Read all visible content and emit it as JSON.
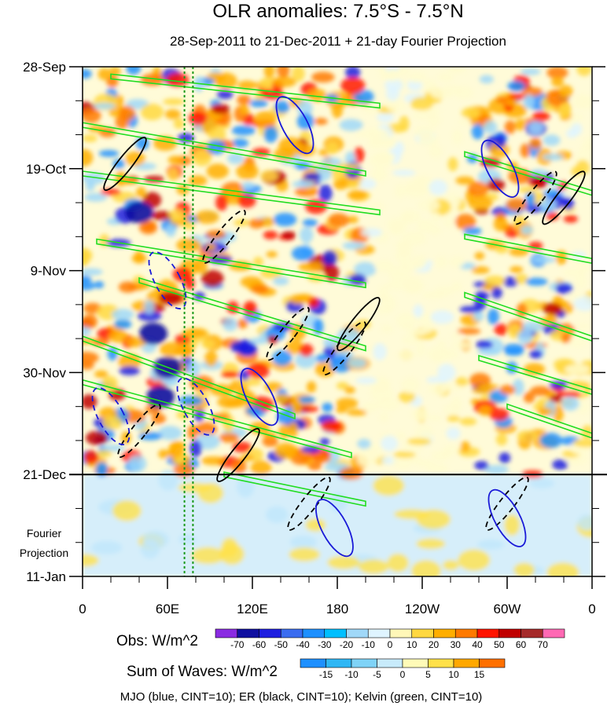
{
  "chart_data": {
    "type": "heatmap",
    "title": "OLR anomalies: 7.5°S - 7.5°N",
    "subtitle": "28-Sep-2011 to 21-Dec-2011 + 21-day Fourier Projection",
    "x_ticks": [
      "0",
      "60E",
      "120E",
      "180",
      "120W",
      "60W",
      "0"
    ],
    "x_tick_lons": [
      0,
      60,
      120,
      180,
      240,
      300,
      360
    ],
    "y_ticks": [
      "28-Sep",
      "19-Oct",
      "9-Nov",
      "30-Nov",
      "21-Dec",
      "11-Jan"
    ],
    "y_tick_days": [
      0,
      21,
      42,
      63,
      84,
      105
    ],
    "projection_label": [
      "Fourier",
      "Projection"
    ],
    "projection_start_day": 84,
    "reference_lines_lon": [
      72,
      78
    ],
    "obs_colorbar": {
      "label": "Obs: W/m^2",
      "levels": [
        "-70",
        "-60",
        "-50",
        "-40",
        "-30",
        "-20",
        "-10",
        "0",
        "10",
        "20",
        "30",
        "40",
        "50",
        "60",
        "70"
      ],
      "colors": [
        "#8a2be2",
        "#1010a0",
        "#1e1ee0",
        "#3a6cf0",
        "#1e90ff",
        "#00bfff",
        "#a0d8f8",
        "#dff4ff",
        "#fff7b8",
        "#ffd840",
        "#ffae00",
        "#ff7a00",
        "#ff1400",
        "#c00000",
        "#a52a2a",
        "#ff69b4"
      ]
    },
    "waves_colorbar": {
      "label": "Sum of Waves: W/m^2",
      "levels": [
        "-15",
        "-10",
        "-5",
        "0",
        "5",
        "10",
        "15"
      ],
      "colors": [
        "#1e90ff",
        "#2fb7f5",
        "#7fd3f7",
        "#c8ebfb",
        "#fffbb8",
        "#ffe14a",
        "#ffa800",
        "#ff7000"
      ]
    },
    "footnote": "MJO (blue, CINT=10); ER (black, CINT=10); Kelvin (green, CINT=10)",
    "wave_colors": {
      "mjo": "#1a1ad8",
      "er": "#000000",
      "kelvin": "#22dd22"
    },
    "mjo_contours": [
      {
        "lon": 60,
        "day": 44,
        "sign": "neg"
      },
      {
        "lon": 80,
        "day": 70,
        "sign": "neg"
      },
      {
        "lon": 125,
        "day": 68,
        "sign": "pos"
      },
      {
        "lon": 178,
        "day": 95,
        "sign": "pos"
      },
      {
        "lon": 300,
        "day": 93,
        "sign": "pos"
      },
      {
        "lon": 295,
        "day": 21,
        "sign": "pos"
      },
      {
        "lon": 150,
        "day": 12,
        "sign": "pos"
      },
      {
        "lon": 20,
        "day": 72,
        "sign": "neg"
      }
    ],
    "er_contours": [
      {
        "lon": 100,
        "day": 35,
        "sign": "neg"
      },
      {
        "lon": 145,
        "day": 55,
        "sign": "neg"
      },
      {
        "lon": 185,
        "day": 58,
        "sign": "neg"
      },
      {
        "lon": 195,
        "day": 53,
        "sign": "pos"
      },
      {
        "lon": 160,
        "day": 90,
        "sign": "neg"
      },
      {
        "lon": 110,
        "day": 80,
        "sign": "pos"
      },
      {
        "lon": 340,
        "day": 27,
        "sign": "pos"
      },
      {
        "lon": 320,
        "day": 27,
        "sign": "neg"
      },
      {
        "lon": 300,
        "day": 90,
        "sign": "neg"
      },
      {
        "lon": 30,
        "day": 20,
        "sign": "pos"
      },
      {
        "lon": 40,
        "day": 75,
        "sign": "neg"
      }
    ],
    "kelvin_bands": [
      {
        "lon0": 20,
        "day0": 2,
        "lon1": 210,
        "day1": 8
      },
      {
        "lon0": 0,
        "day0": 12,
        "lon1": 200,
        "day1": 22
      },
      {
        "lon0": 0,
        "day0": 22,
        "lon1": 210,
        "day1": 30
      },
      {
        "lon0": 10,
        "day0": 36,
        "lon1": 200,
        "day1": 45
      },
      {
        "lon0": 40,
        "day0": 44,
        "lon1": 200,
        "day1": 58
      },
      {
        "lon0": 0,
        "day0": 56,
        "lon1": 150,
        "day1": 72
      },
      {
        "lon0": 0,
        "day0": 65,
        "lon1": 190,
        "day1": 80
      },
      {
        "lon0": 100,
        "day0": 84,
        "lon1": 200,
        "day1": 90
      },
      {
        "lon0": 270,
        "day0": 18,
        "lon1": 360,
        "day1": 26
      },
      {
        "lon0": 270,
        "day0": 35,
        "lon1": 360,
        "day1": 40
      },
      {
        "lon0": 270,
        "day0": 47,
        "lon1": 360,
        "day1": 56
      },
      {
        "lon0": 280,
        "day0": 60,
        "lon1": 360,
        "day1": 67
      },
      {
        "lon0": 300,
        "day0": 70,
        "lon1": 360,
        "day1": 76
      }
    ]
  }
}
